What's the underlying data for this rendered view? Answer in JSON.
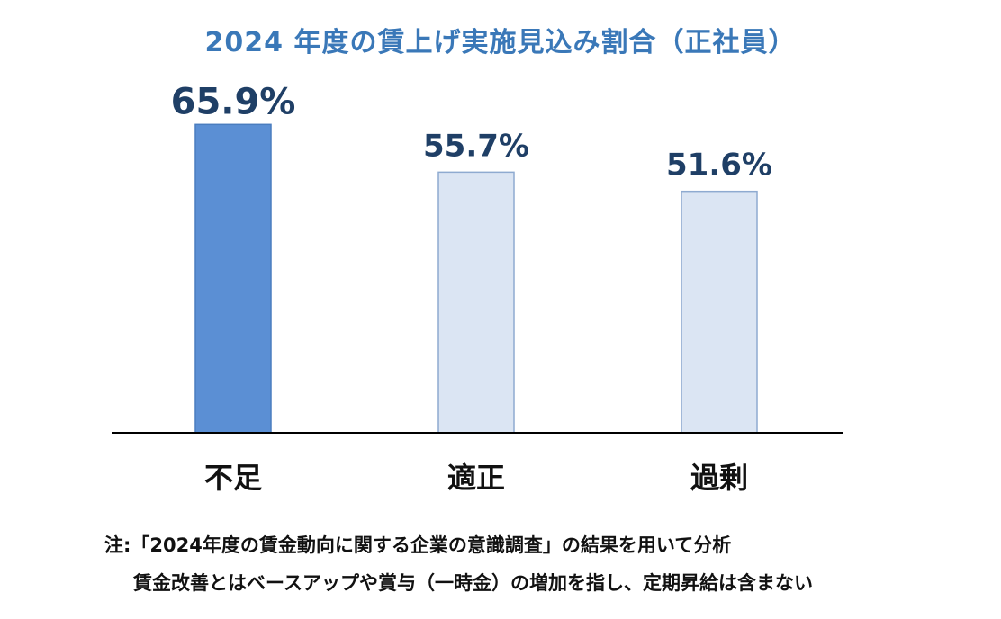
{
  "chart_data": {
    "type": "bar",
    "title": "2024 年度の賃上げ実施見込み割合（正社員）",
    "categories": [
      "不足",
      "適正",
      "過剰"
    ],
    "values": [
      65.9,
      55.7,
      51.6
    ],
    "data_labels": [
      "65.9%",
      "55.7%",
      "51.6%"
    ],
    "unit": "%",
    "highlight_index": 0,
    "legend": "none",
    "grid": false,
    "colors": {
      "highlight_fill": "#5b8fd4",
      "highlight_stroke": "#4a7dbf",
      "normal_fill": "#dbe5f3",
      "normal_stroke": "#8eaad0",
      "label_color": "#1f3f66",
      "title_color": "#3a78b8",
      "axis_color": "#000000"
    }
  },
  "notes": {
    "line1": "注:「2024年度の賃金動向に関する企業の意識調査」の結果を用いて分析",
    "line2": "賃金改善とはベースアップや賞与（一時金）の増加を指し、定期昇給は含まない"
  }
}
